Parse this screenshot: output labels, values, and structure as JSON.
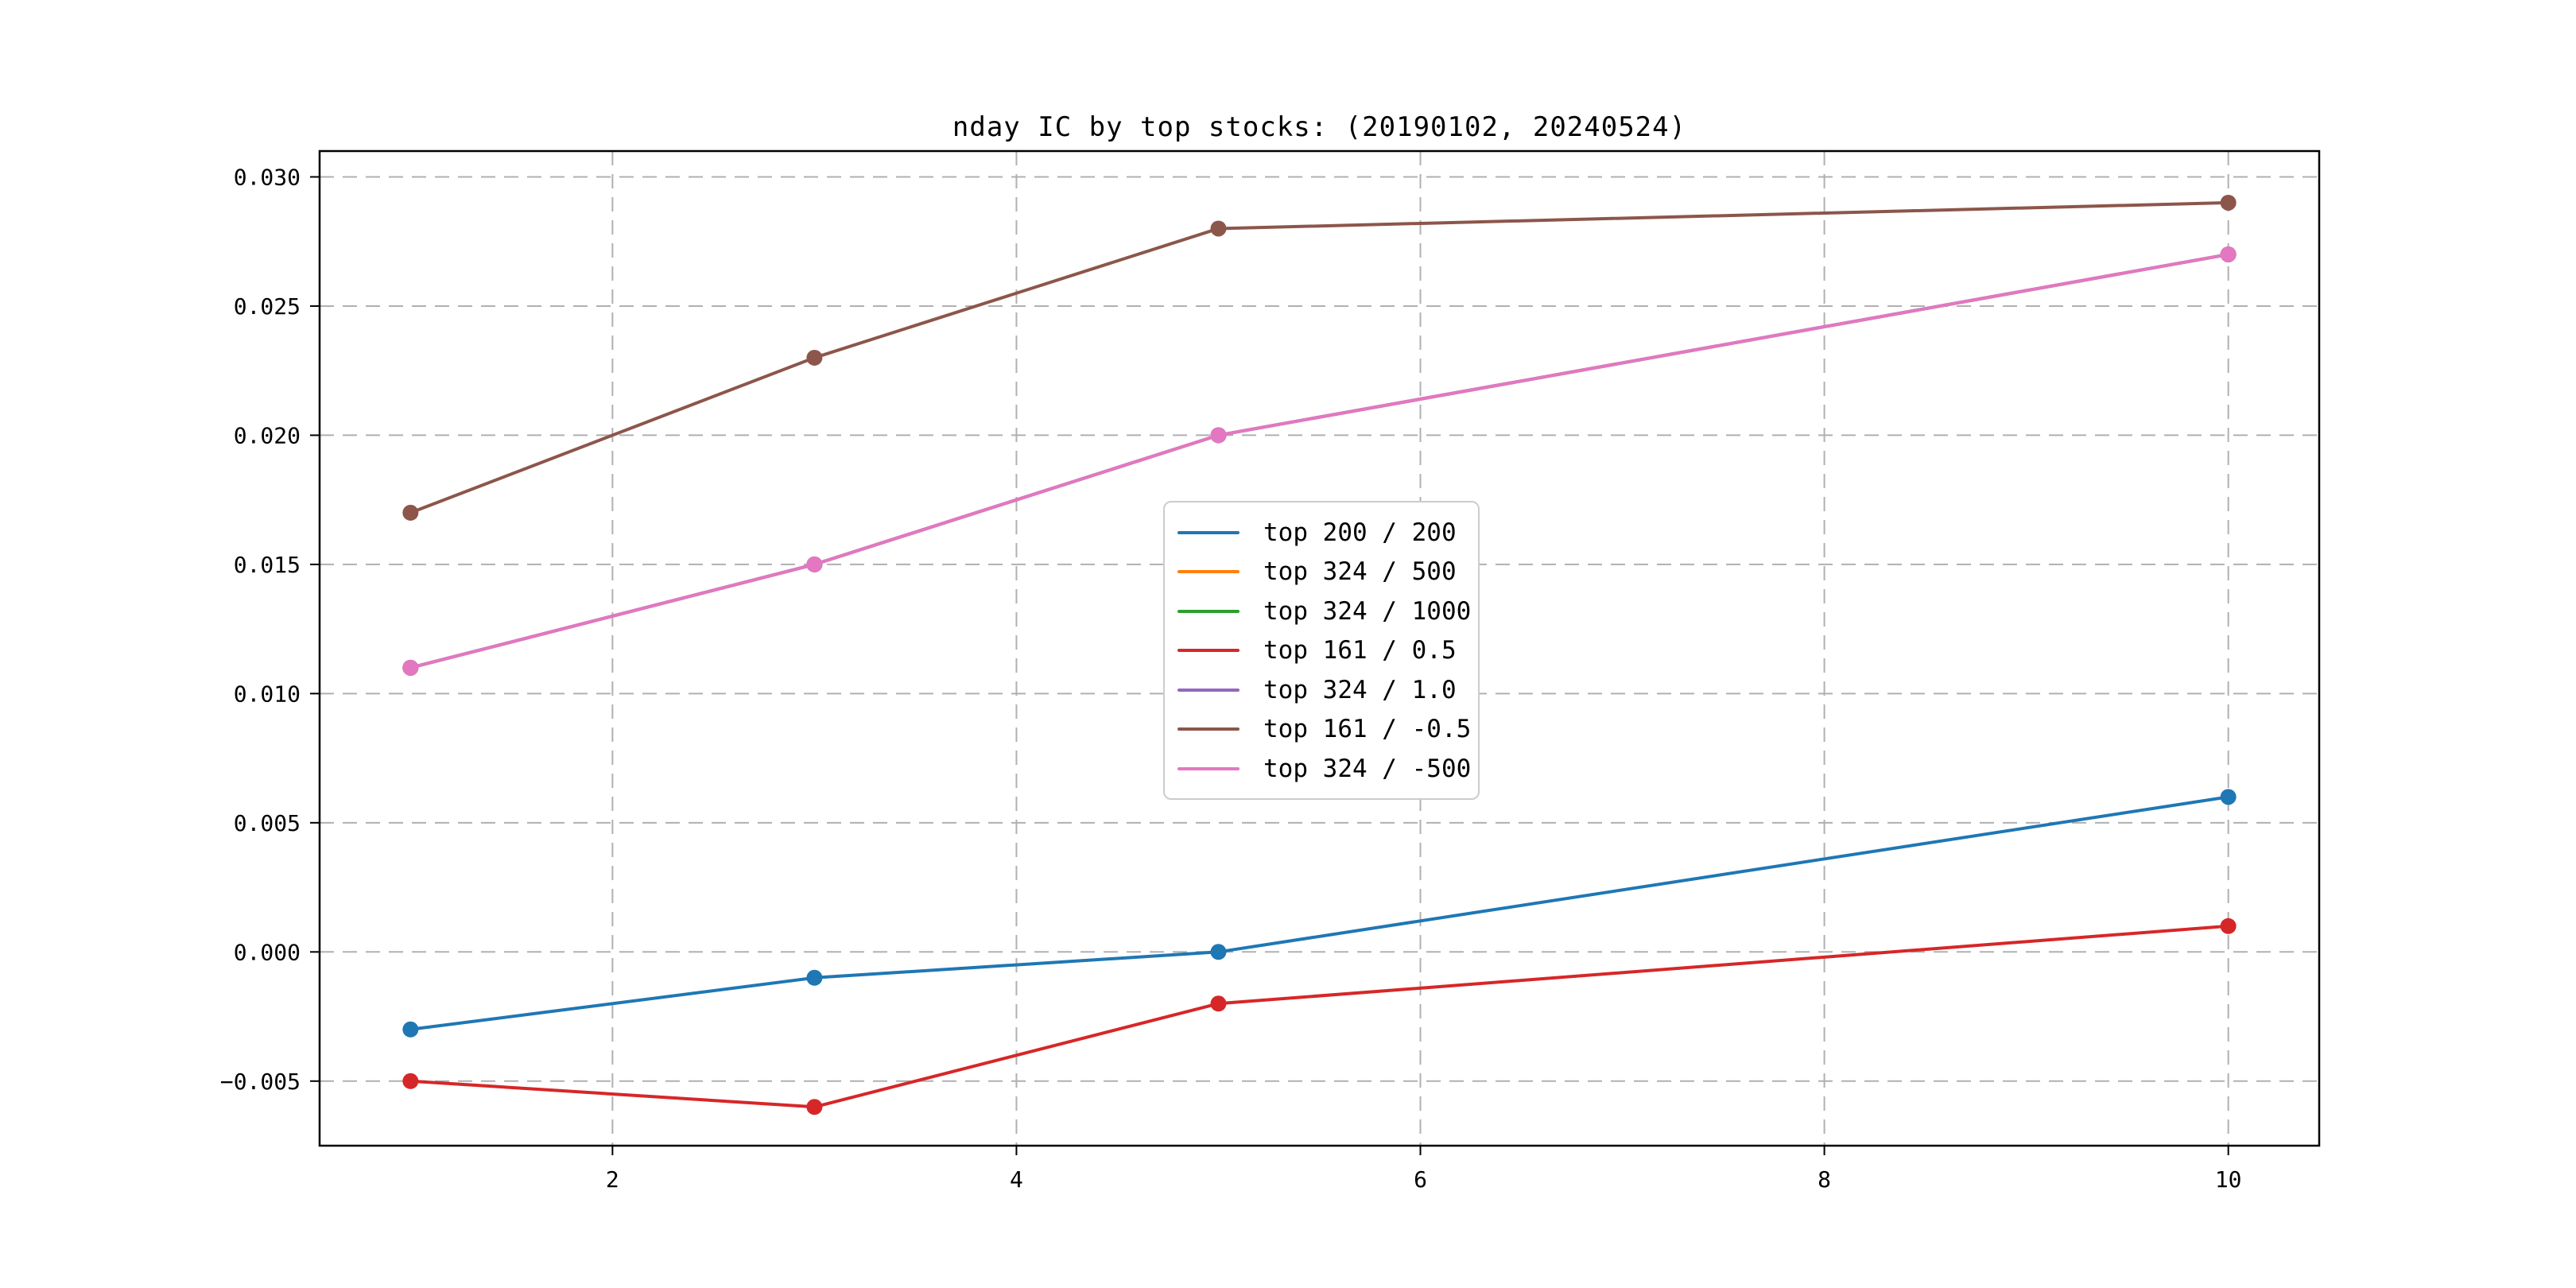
{
  "chart_data": {
    "type": "line",
    "title": "nday IC by top stocks: (20190102, 20240524)",
    "xlabel": "",
    "ylabel": "",
    "x": [
      1,
      3,
      5,
      10
    ],
    "xlim": [
      0.55,
      10.45
    ],
    "ylim": [
      -0.0075,
      0.031
    ],
    "grid": true,
    "grid_style": "dashed",
    "legend_position": "center",
    "marker": "circle",
    "xticks": {
      "values": [
        2,
        4,
        6,
        8,
        10
      ],
      "labels": [
        "2",
        "4",
        "6",
        "8",
        "10"
      ]
    },
    "yticks": {
      "values": [
        -0.005,
        0.0,
        0.005,
        0.01,
        0.015,
        0.02,
        0.025,
        0.03
      ],
      "labels": [
        "−0.005",
        "0.000",
        "0.005",
        "0.010",
        "0.015",
        "0.020",
        "0.025",
        "0.030"
      ]
    },
    "series": [
      {
        "name": "top 200 / 200",
        "color": "#1f77b4",
        "values": [
          -0.003,
          -0.001,
          0.0,
          0.006
        ],
        "occluded": false
      },
      {
        "name": "top 324 / 500",
        "color": "#ff7f0e",
        "values": [
          0.011,
          0.015,
          0.02,
          0.027
        ],
        "occluded": true
      },
      {
        "name": "top 324 / 1000",
        "color": "#2ca02c",
        "values": [
          0.011,
          0.015,
          0.02,
          0.027
        ],
        "occluded": true
      },
      {
        "name": "top 161 / 0.5",
        "color": "#d62728",
        "values": [
          -0.005,
          -0.006,
          -0.002,
          0.001
        ],
        "occluded": false
      },
      {
        "name": "top 324 / 1.0",
        "color": "#9467bd",
        "values": [
          0.011,
          0.015,
          0.02,
          0.027
        ],
        "occluded": true
      },
      {
        "name": "top 161 / -0.5",
        "color": "#8c564b",
        "values": [
          0.017,
          0.023,
          0.028,
          0.029
        ],
        "occluded": false
      },
      {
        "name": "top 324 / -500",
        "color": "#e377c2",
        "values": [
          0.011,
          0.015,
          0.02,
          0.027
        ],
        "occluded": false
      }
    ],
    "colors": {
      "spine": "#000000",
      "grid": "#b0b0b0",
      "tick_label": "#000000",
      "background": "#ffffff",
      "legend_border": "#cccccc"
    }
  }
}
